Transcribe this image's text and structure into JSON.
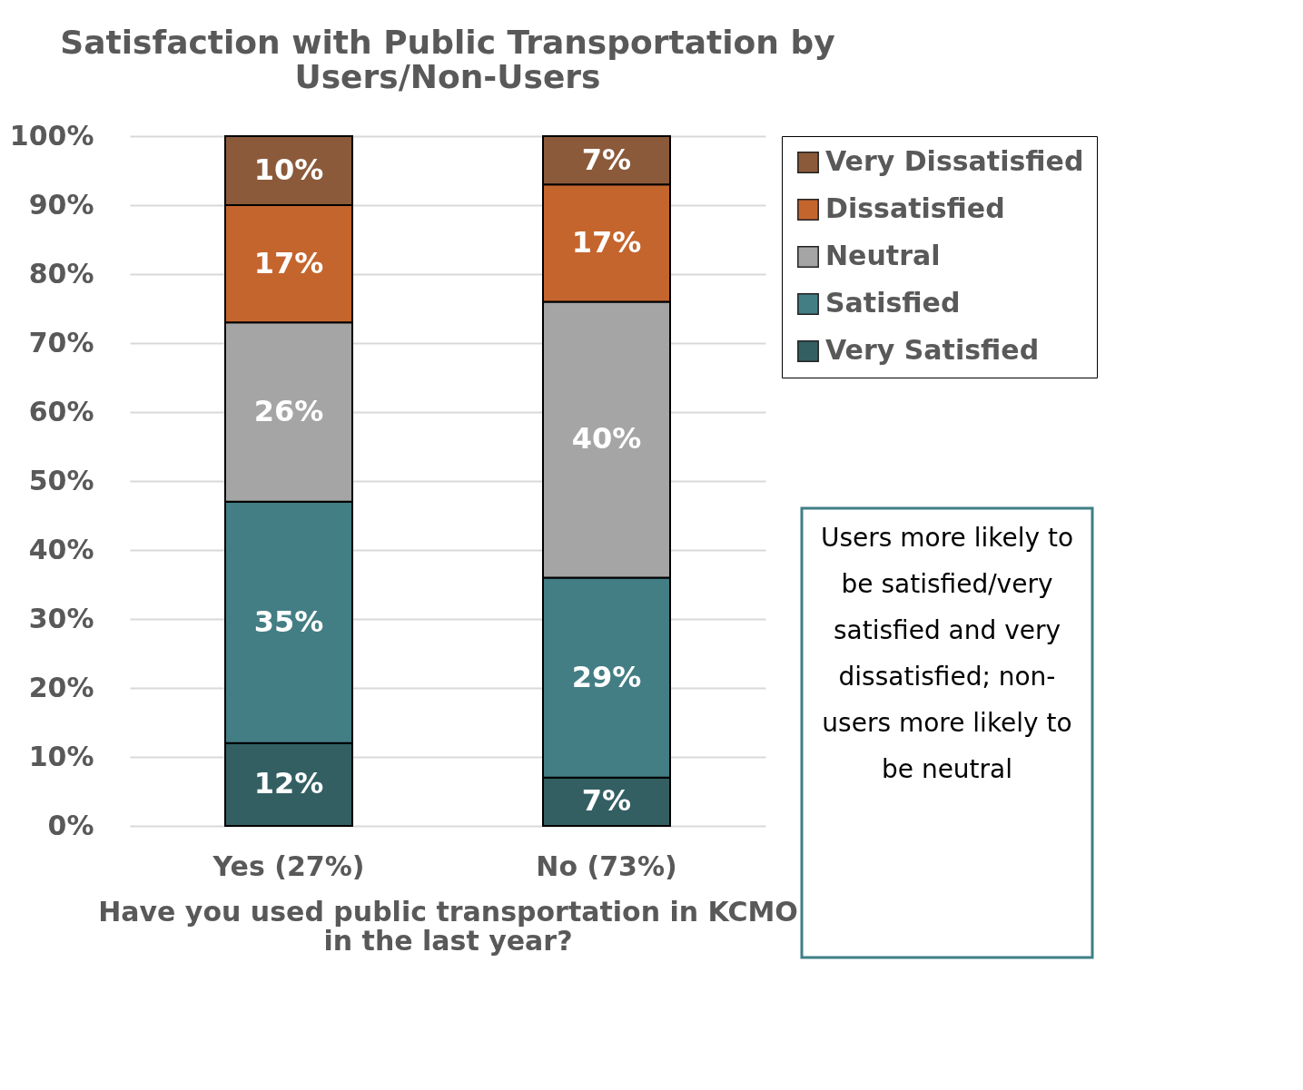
{
  "chart_data": {
    "type": "bar",
    "stacked": true,
    "title": "Satisfaction with Public Transportation by Users/Non-Users",
    "xlabel": "Have you used public transportation in KCMO in the last year?",
    "categories": [
      "Yes (27%)",
      "No (73%)"
    ],
    "series": [
      {
        "name": "Very Satisfied",
        "color": "#335f63",
        "values": [
          12,
          7
        ],
        "value_labels": [
          "12%",
          "7%"
        ]
      },
      {
        "name": "Satisfied",
        "color": "#437e84",
        "values": [
          35,
          29
        ],
        "value_labels": [
          "35%",
          "29%"
        ]
      },
      {
        "name": "Neutral",
        "color": "#a5a5a5",
        "values": [
          26,
          40
        ],
        "value_labels": [
          "26%",
          "40%"
        ]
      },
      {
        "name": "Dissatisfied",
        "color": "#c4652e",
        "values": [
          17,
          17
        ],
        "value_labels": [
          "17%",
          "17%"
        ]
      },
      {
        "name": "Very Dissatisfied",
        "color": "#8b5a3a",
        "values": [
          10,
          7
        ],
        "value_labels": [
          "10%",
          "7%"
        ]
      }
    ],
    "ylim": [
      0,
      100
    ],
    "yticks": [
      {
        "value": 0,
        "label": "0%"
      },
      {
        "value": 10,
        "label": "10%"
      },
      {
        "value": 20,
        "label": "20%"
      },
      {
        "value": 30,
        "label": "30%"
      },
      {
        "value": 40,
        "label": "40%"
      },
      {
        "value": 50,
        "label": "50%"
      },
      {
        "value": 60,
        "label": "60%"
      },
      {
        "value": 70,
        "label": "70%"
      },
      {
        "value": 80,
        "label": "80%"
      },
      {
        "value": 90,
        "label": "90%"
      },
      {
        "value": 100,
        "label": "100%"
      }
    ],
    "grid": "y",
    "legend": "top right",
    "annotations": [
      "Users more likely to be satisfied/very satisfied and very dissatisfied; non-users more likely to be neutral"
    ]
  }
}
